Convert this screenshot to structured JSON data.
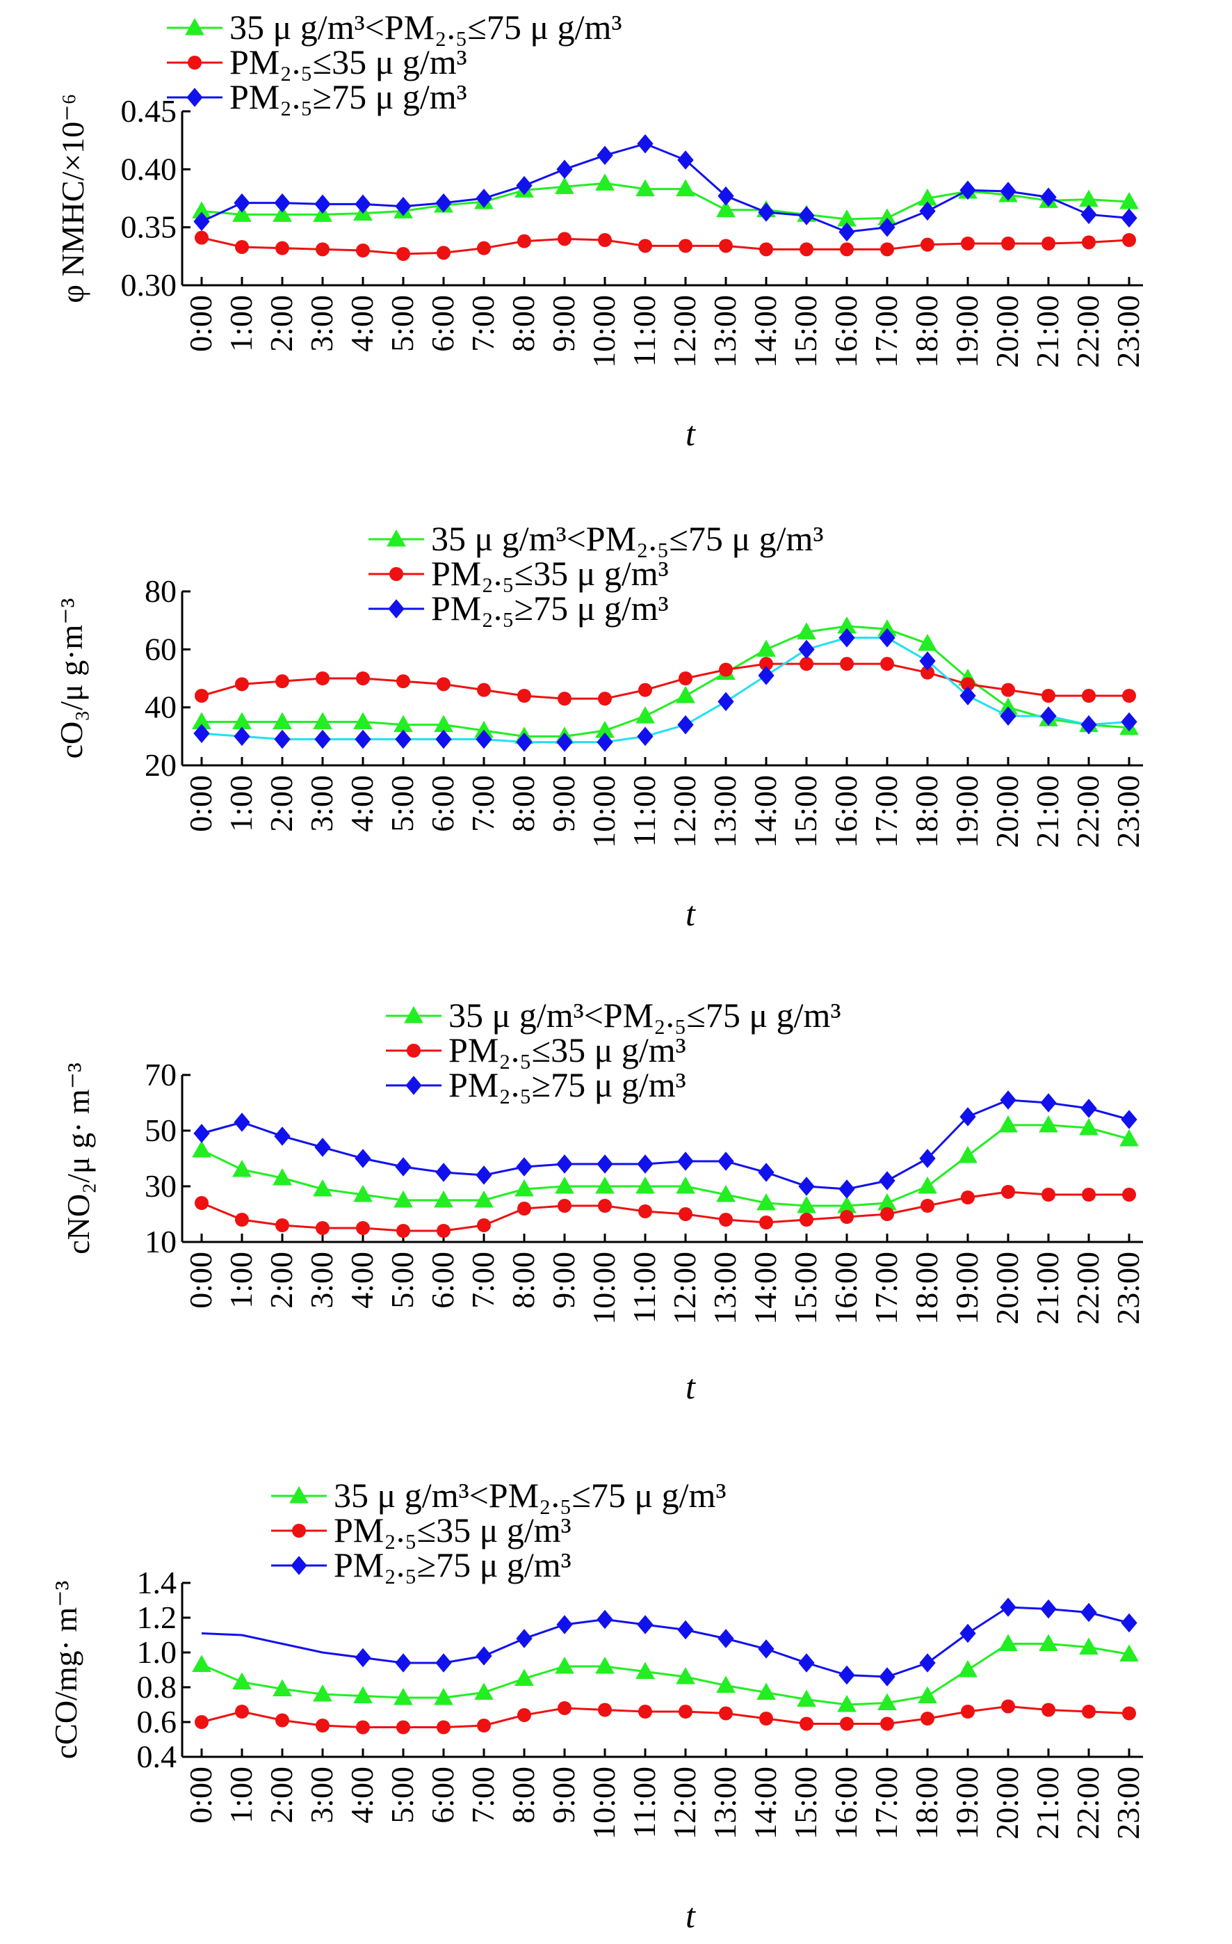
{
  "legend_labels": {
    "mid": "35 μ g/m³<PM₂.₅≤75 μ g/m³",
    "low": "PM₂.₅≤35 μ g/m³",
    "high": "PM₂.₅≥75 μ g/m³"
  },
  "series_colors": {
    "mid": "#22ee22",
    "low": "#ee1111",
    "high": "#1111ee",
    "high_cyan": "#22e0f0"
  },
  "chart_data": [
    {
      "type": "line",
      "ylabel": "φ NMHC/×10⁻⁶",
      "xlabel": "t",
      "ylim": [
        0.3,
        0.45
      ],
      "yticks": [
        "0.30",
        "0.35",
        "0.40",
        "0.45"
      ],
      "categories": [
        "0:00",
        "1:00",
        "2:00",
        "3:00",
        "4:00",
        "5:00",
        "6:00",
        "7:00",
        "8:00",
        "9:00",
        "10:00",
        "11:00",
        "12:00",
        "13:00",
        "14:00",
        "15:00",
        "16:00",
        "17:00",
        "18:00",
        "19:00",
        "20:00",
        "21:00",
        "22:00",
        "23:00"
      ],
      "legend_position": "top-left",
      "series": [
        {
          "name": "35 μ g/m³<PM₂.₅≤75 μ g/m³",
          "key": "mid",
          "marker": "triangle",
          "values": [
            0.364,
            0.361,
            0.361,
            0.361,
            0.362,
            0.364,
            0.369,
            0.372,
            0.382,
            0.385,
            0.388,
            0.383,
            0.383,
            0.365,
            0.365,
            0.361,
            0.357,
            0.358,
            0.375,
            0.381,
            0.378,
            0.373,
            0.374,
            0.372
          ]
        },
        {
          "name": "PM₂.₅≤35 μ g/m³",
          "key": "low",
          "marker": "circle",
          "values": [
            0.341,
            0.333,
            0.332,
            0.331,
            0.33,
            0.327,
            0.328,
            0.332,
            0.338,
            0.34,
            0.339,
            0.334,
            0.334,
            0.334,
            0.331,
            0.331,
            0.331,
            0.331,
            0.335,
            0.336,
            0.336,
            0.336,
            0.337,
            0.339
          ]
        },
        {
          "name": "PM₂.₅≥75 μ g/m³",
          "key": "high",
          "marker": "diamond",
          "values": [
            0.355,
            0.371,
            0.371,
            0.37,
            0.37,
            0.368,
            0.371,
            0.375,
            0.386,
            0.4,
            0.412,
            0.422,
            0.408,
            0.377,
            0.363,
            0.36,
            0.346,
            0.35,
            0.364,
            0.382,
            0.381,
            0.376,
            0.361,
            0.358
          ]
        }
      ]
    },
    {
      "type": "line",
      "ylabel": "cO₃/μ g·m⁻³",
      "xlabel": "t",
      "ylim": [
        20,
        80
      ],
      "yticks": [
        "20",
        "40",
        "60",
        "80"
      ],
      "categories": [
        "0:00",
        "1:00",
        "2:00",
        "3:00",
        "4:00",
        "5:00",
        "6:00",
        "7:00",
        "8:00",
        "9:00",
        "10:00",
        "11:00",
        "12:00",
        "13:00",
        "14:00",
        "15:00",
        "16:00",
        "17:00",
        "18:00",
        "19:00",
        "20:00",
        "21:00",
        "22:00",
        "23:00"
      ],
      "legend_position": "top-right",
      "series": [
        {
          "name": "35 μ g/m³<PM₂.₅≤75 μ g/m³",
          "key": "mid",
          "marker": "triangle",
          "values": [
            35,
            35,
            35,
            35,
            35,
            34,
            34,
            32,
            30,
            30,
            32,
            37,
            44,
            52,
            60,
            66,
            68,
            67,
            62,
            50,
            40,
            36,
            34,
            33
          ]
        },
        {
          "name": "PM₂.₅≤35 μ g/m³",
          "key": "low",
          "marker": "circle",
          "values": [
            44,
            48,
            49,
            50,
            50,
            49,
            48,
            46,
            44,
            43,
            43,
            46,
            50,
            53,
            55,
            55,
            55,
            55,
            52,
            48,
            46,
            44,
            44,
            44
          ]
        },
        {
          "name": "PM₂.₅≥75 μ g/m³",
          "key": "high",
          "marker": "diamond",
          "values": [
            31,
            30,
            29,
            29,
            29,
            29,
            29,
            29,
            28,
            28,
            28,
            30,
            34,
            42,
            51,
            60,
            64,
            64,
            56,
            44,
            37,
            37,
            34,
            35
          ]
        }
      ]
    },
    {
      "type": "line",
      "ylabel": "cNO₂/μ g· m⁻³",
      "xlabel": "t",
      "ylim": [
        10,
        70
      ],
      "yticks": [
        "10",
        "30",
        "50",
        "70"
      ],
      "categories": [
        "0:00",
        "1:00",
        "2:00",
        "3:00",
        "4:00",
        "5:00",
        "6:00",
        "7:00",
        "8:00",
        "9:00",
        "10:00",
        "11:00",
        "12:00",
        "13:00",
        "14:00",
        "15:00",
        "16:00",
        "17:00",
        "18:00",
        "19:00",
        "20:00",
        "21:00",
        "22:00",
        "23:00"
      ],
      "legend_position": "top-right",
      "series": [
        {
          "name": "35 μ g/m³<PM₂.₅≤75 μ g/m³",
          "key": "mid",
          "marker": "triangle",
          "values": [
            43,
            36,
            33,
            29,
            27,
            25,
            25,
            25,
            29,
            30,
            30,
            30,
            30,
            27,
            24,
            23,
            23,
            24,
            30,
            41,
            52,
            52,
            51,
            47
          ]
        },
        {
          "name": "PM₂.₅≤35 μ g/m³",
          "key": "low",
          "marker": "circle",
          "values": [
            24,
            18,
            16,
            15,
            15,
            14,
            14,
            16,
            22,
            23,
            23,
            21,
            20,
            18,
            17,
            18,
            19,
            20,
            23,
            26,
            28,
            27,
            27,
            27
          ]
        },
        {
          "name": "PM₂.₅≥75 μ g/m³",
          "key": "high",
          "marker": "diamond",
          "values": [
            49,
            53,
            48,
            44,
            40,
            37,
            35,
            34,
            37,
            38,
            38,
            38,
            39,
            39,
            35,
            30,
            29,
            32,
            40,
            55,
            61,
            60,
            58,
            54
          ]
        }
      ]
    },
    {
      "type": "line",
      "ylabel": "cCO/mg· m⁻³",
      "xlabel": "t",
      "ylim": [
        0.4,
        1.4
      ],
      "yticks": [
        "0.4",
        "0.6",
        "0.8",
        "1.0",
        "1.2",
        "1.4"
      ],
      "categories": [
        "0:00",
        "1:00",
        "2:00",
        "3:00",
        "4:00",
        "5:00",
        "6:00",
        "7:00",
        "8:00",
        "9:00",
        "10:00",
        "11:00",
        "12:00",
        "13:00",
        "14:00",
        "15:00",
        "16:00",
        "17:00",
        "18:00",
        "19:00",
        "20:00",
        "21:00",
        "22:00",
        "23:00"
      ],
      "legend_position": "top-left",
      "series": [
        {
          "name": "35 μ g/m³<PM₂.₅≤75 μ g/m³",
          "key": "mid",
          "marker": "triangle",
          "values": [
            0.93,
            0.83,
            0.79,
            0.76,
            0.75,
            0.74,
            0.74,
            0.77,
            0.85,
            0.92,
            0.92,
            0.89,
            0.86,
            0.81,
            0.77,
            0.73,
            0.7,
            0.71,
            0.75,
            0.9,
            1.05,
            1.05,
            1.03,
            0.99
          ]
        },
        {
          "name": "PM₂.₅≤35 μ g/m³",
          "key": "low",
          "marker": "circle",
          "values": [
            0.6,
            0.66,
            0.61,
            0.58,
            0.57,
            0.57,
            0.57,
            0.58,
            0.64,
            0.68,
            0.67,
            0.66,
            0.66,
            0.65,
            0.62,
            0.59,
            0.59,
            0.59,
            0.62,
            0.66,
            0.69,
            0.67,
            0.66,
            0.65
          ]
        },
        {
          "name": "PM₂.₅≥75 μ g/m³",
          "key": "high",
          "marker": "diamond",
          "values": [
            1.11,
            1.1,
            1.05,
            1.0,
            0.97,
            0.94,
            0.94,
            0.98,
            1.08,
            1.16,
            1.19,
            1.16,
            1.13,
            1.08,
            1.02,
            0.94,
            0.87,
            0.86,
            0.94,
            1.11,
            1.26,
            1.25,
            1.23,
            1.17
          ]
        }
      ]
    }
  ]
}
